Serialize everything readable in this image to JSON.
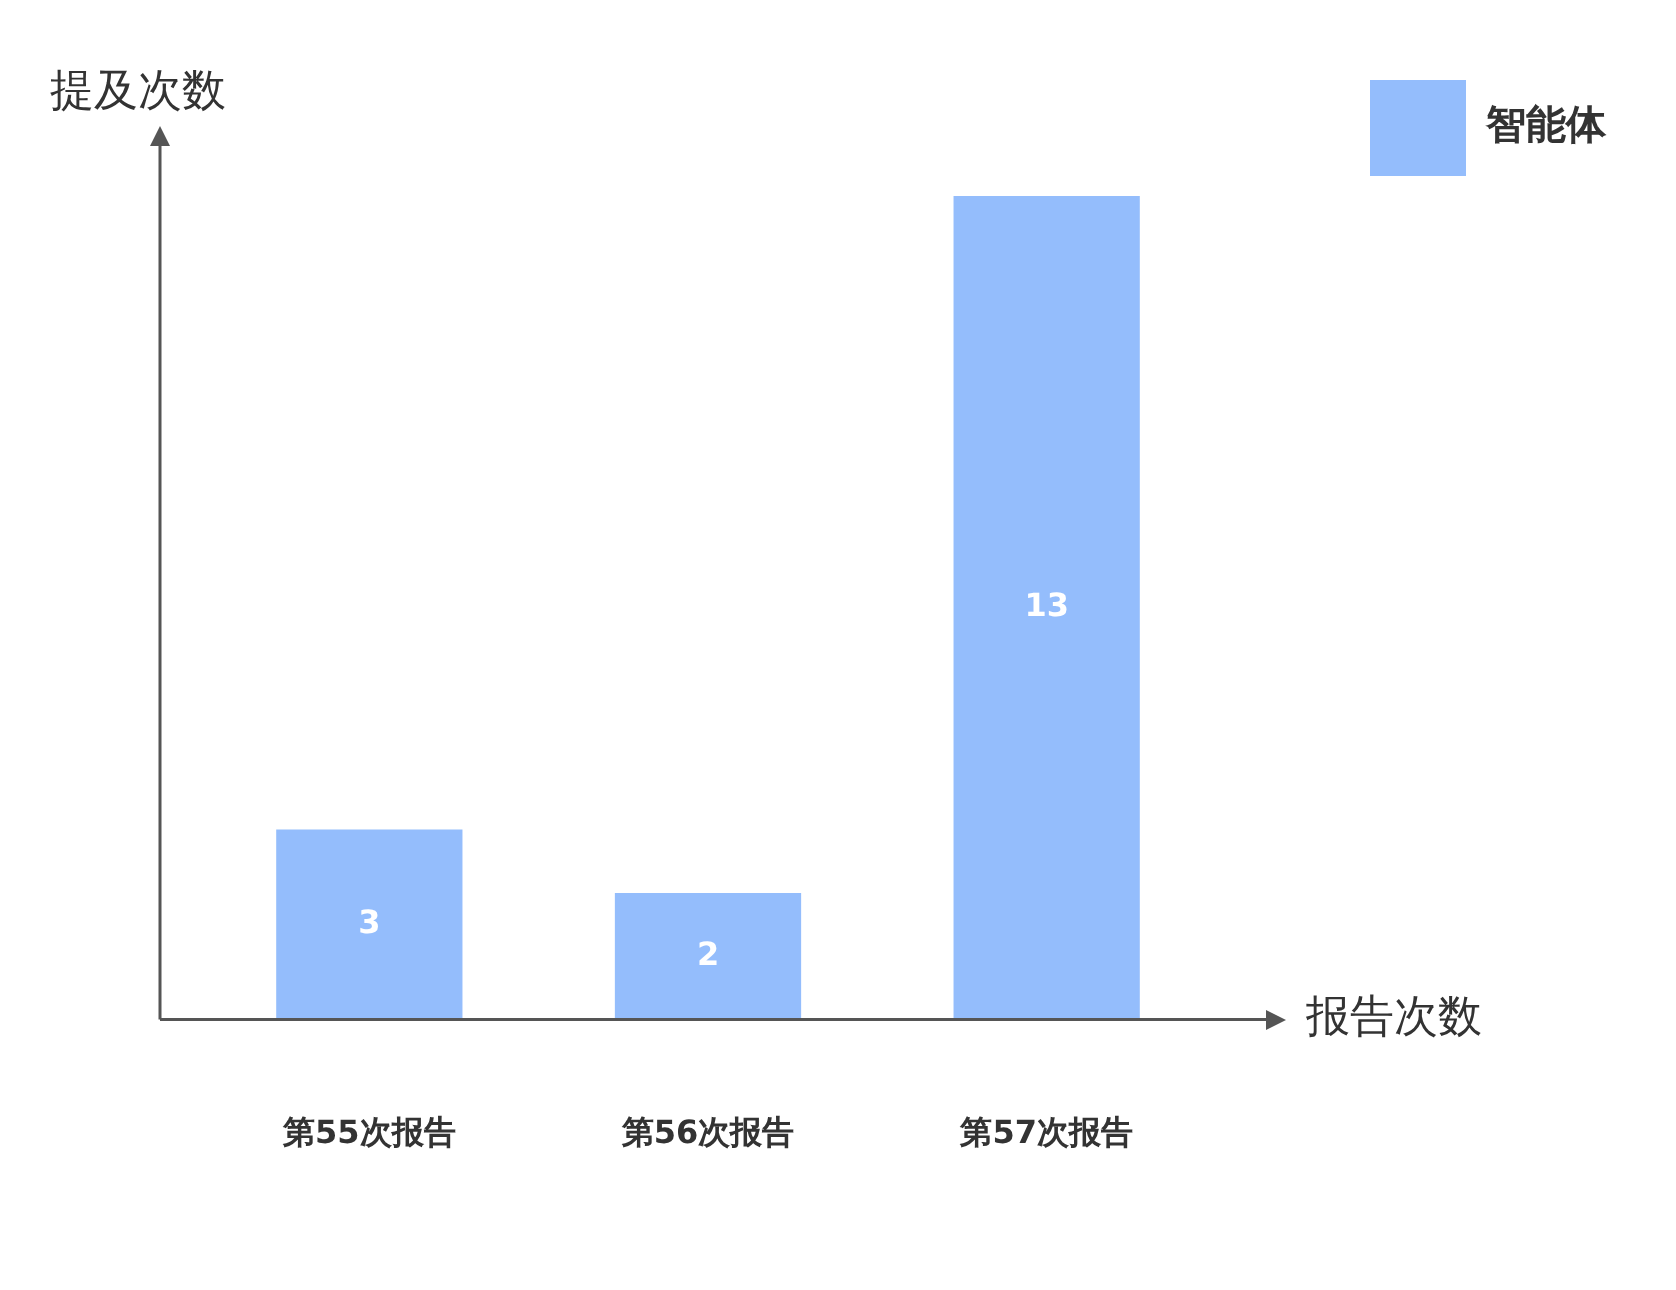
{
  "chart_data": {
    "type": "bar",
    "xlabel": "报告次数",
    "ylabel": "提及次数",
    "categories": [
      "第55次报告",
      "第56次报告",
      "第57次报告"
    ],
    "series": [
      {
        "name": "智能体",
        "color": "#94bdfc",
        "values": [
          3,
          2,
          13
        ]
      }
    ],
    "data_labels": true,
    "legend": "top right"
  }
}
